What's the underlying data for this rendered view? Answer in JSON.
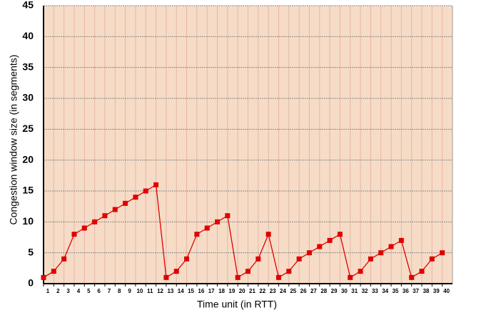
{
  "chart_data": {
    "type": "line",
    "xlabel": "Time unit (in RTT)",
    "ylabel": "Congestion window size (in segments)",
    "x": [
      1,
      2,
      3,
      4,
      5,
      6,
      7,
      8,
      9,
      10,
      11,
      12,
      13,
      14,
      15,
      16,
      17,
      18,
      19,
      20,
      21,
      22,
      23,
      24,
      25,
      26,
      27,
      28,
      29,
      30,
      31,
      32,
      33,
      34,
      35,
      36,
      37,
      38,
      39,
      40
    ],
    "values": [
      1,
      2,
      4,
      8,
      9,
      10,
      11,
      12,
      13,
      14,
      15,
      16,
      1,
      2,
      4,
      8,
      9,
      10,
      11,
      1,
      2,
      4,
      8,
      1,
      2,
      4,
      5,
      6,
      7,
      8,
      1,
      2,
      4,
      5,
      6,
      7,
      1,
      2,
      4,
      5
    ],
    "color": "#e00000",
    "xlim": [
      1,
      41
    ],
    "xticks": [
      1,
      2,
      3,
      4,
      5,
      6,
      7,
      8,
      9,
      10,
      11,
      12,
      13,
      14,
      15,
      16,
      17,
      18,
      19,
      20,
      21,
      22,
      23,
      24,
      25,
      26,
      27,
      28,
      29,
      30,
      31,
      32,
      33,
      34,
      35,
      36,
      37,
      38,
      39,
      40
    ],
    "ylim": [
      0,
      45
    ],
    "yticks": [
      0,
      5,
      10,
      15,
      20,
      25,
      30,
      35,
      40,
      45
    ],
    "grid": true
  }
}
